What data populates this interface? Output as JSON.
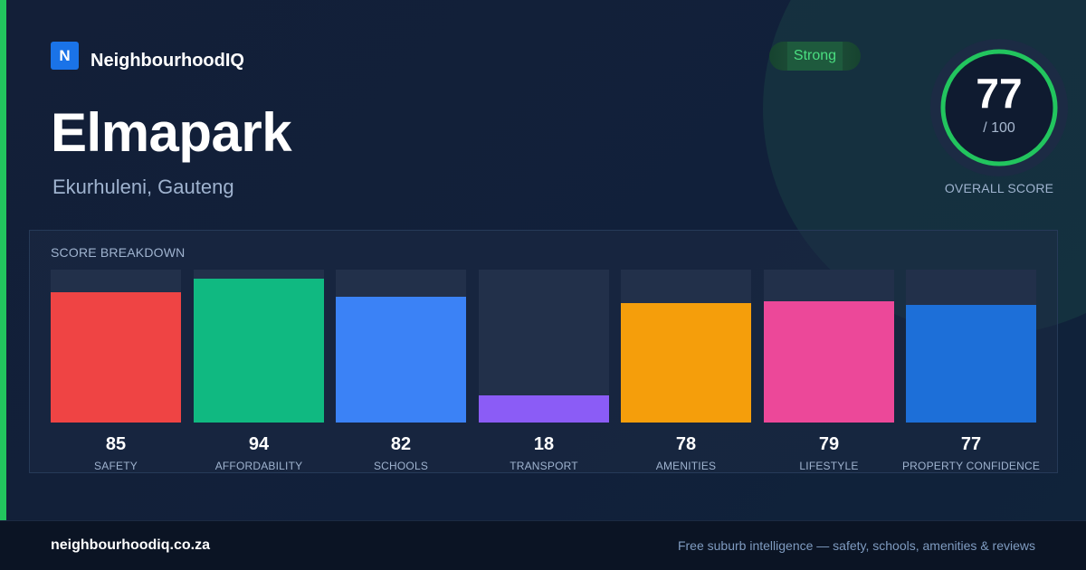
{
  "brand": {
    "logo_letter": "N",
    "name": "NeighbourhoodIQ"
  },
  "suburb": {
    "name": "Elmapark",
    "location": "Ekurhuleni, Gauteng"
  },
  "rating": {
    "label": "Strong",
    "color": "#4ade80"
  },
  "overall": {
    "score": "77",
    "out_of": "/ 100",
    "label": "OVERALL SCORE",
    "fraction": 0.77,
    "ring_color": "#22c55e"
  },
  "breakdown": {
    "title": "SCORE BREAKDOWN",
    "items": [
      {
        "label": "SAFETY",
        "value": "85",
        "score": 85,
        "color": "#ef4444"
      },
      {
        "label": "AFFORDABILITY",
        "value": "94",
        "score": 94,
        "color": "#10b981"
      },
      {
        "label": "SCHOOLS",
        "value": "82",
        "score": 82,
        "color": "#3b82f6"
      },
      {
        "label": "TRANSPORT",
        "value": "18",
        "score": 18,
        "color": "#8b5cf6"
      },
      {
        "label": "AMENITIES",
        "value": "78",
        "score": 78,
        "color": "#f59e0b"
      },
      {
        "label": "LIFESTYLE",
        "value": "79",
        "score": 79,
        "color": "#ec4899"
      },
      {
        "label": "PROPERTY CONFIDENCE",
        "value": "77",
        "score": 77,
        "color": "#1d6fd8"
      }
    ]
  },
  "footer": {
    "domain": "neighbourhoodiq.co.za",
    "tagline": "Free suburb intelligence — safety, schools, amenities & reviews"
  }
}
